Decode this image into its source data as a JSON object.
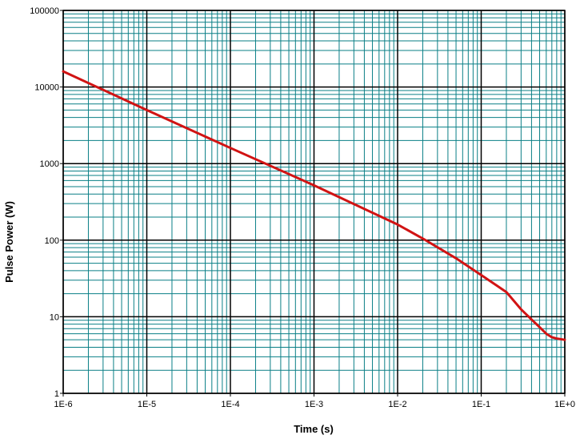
{
  "chart_data": {
    "type": "line",
    "title": "",
    "xlabel": "Time (s)",
    "ylabel": "Pulse Power (W)",
    "x_scale": "log",
    "y_scale": "log",
    "xlim": [
      1e-06,
      1
    ],
    "ylim": [
      1,
      100000
    ],
    "x_tick_values": [
      1e-06,
      1e-05,
      0.0001,
      0.001,
      0.01,
      0.1,
      1
    ],
    "x_tick_labels": [
      "1E-6",
      "1E-5",
      "1E-4",
      "1E-3",
      "1E-2",
      "1E-1",
      "1E+0"
    ],
    "y_tick_values": [
      1,
      10,
      100,
      1000,
      10000,
      100000
    ],
    "y_tick_labels": [
      "1",
      "10",
      "100",
      "1000",
      "10000",
      "100000"
    ],
    "grid": true,
    "colors": {
      "minor_grid": "#0a7f86",
      "major_grid": "#000000",
      "curve": "#d11313",
      "background": "#ffffff"
    },
    "series": [
      {
        "x": [
          1e-06,
          1e-05,
          0.0001,
          0.001,
          0.01,
          0.02,
          0.05,
          0.1,
          0.15,
          0.2,
          0.3,
          0.4,
          0.5,
          0.6,
          0.7,
          0.8,
          1
        ],
        "values": [
          16000,
          5000,
          1600,
          520,
          160,
          105,
          58,
          35,
          26,
          21,
          12.5,
          9.2,
          7.3,
          6,
          5.4,
          5.2,
          5
        ]
      }
    ]
  }
}
